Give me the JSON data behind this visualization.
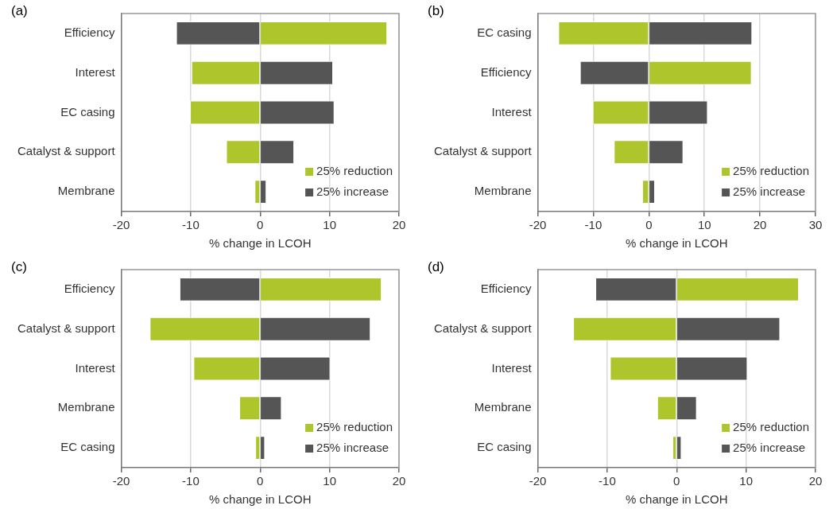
{
  "chart_data": [
    {
      "type": "bar",
      "title": "(a)",
      "orientation": "horizontal",
      "stacked": true,
      "xlabel": "% change in LCOH",
      "categories": [
        "Efficiency",
        "Interest",
        "EC casing",
        "Catalyst & support",
        "Membrane"
      ],
      "series": [
        {
          "name": "25% reduction",
          "color": "#aec62c",
          "values": [
            18.3,
            -9.9,
            -10.1,
            -4.9,
            -0.8
          ]
        },
        {
          "name": "25% increase",
          "color": "#555555",
          "values": [
            -12.1,
            10.5,
            10.7,
            4.9,
            0.9
          ]
        }
      ],
      "xlim": [
        -20,
        20
      ],
      "xticks": [
        -20,
        -10,
        0,
        10,
        20
      ],
      "grid": "x",
      "legend": "bottom right"
    },
    {
      "type": "bar",
      "title": "(b)",
      "orientation": "horizontal",
      "stacked": true,
      "xlabel": "% change in LCOH",
      "categories": [
        "EC casing",
        "Efficiency",
        "Interest",
        "Catalyst & support",
        "Membrane"
      ],
      "series": [
        {
          "name": "25% reduction",
          "color": "#aec62c",
          "values": [
            -16.3,
            18.5,
            -10.1,
            -6.3,
            -1.2
          ]
        },
        {
          "name": "25% increase",
          "color": "#555555",
          "values": [
            18.6,
            -12.4,
            10.6,
            6.2,
            1.1
          ]
        }
      ],
      "xlim": [
        -20,
        30
      ],
      "xticks": [
        -20,
        -10,
        0,
        10,
        20,
        30
      ],
      "grid": "x",
      "legend": "bottom right"
    },
    {
      "type": "bar",
      "title": "(c)",
      "orientation": "horizontal",
      "stacked": true,
      "xlabel": "% change in LCOH",
      "categories": [
        "Efficiency",
        "Catalyst & support",
        "Interest",
        "Membrane",
        "EC casing"
      ],
      "series": [
        {
          "name": "25% reduction",
          "color": "#aec62c",
          "values": [
            17.5,
            -15.9,
            -9.6,
            -3.0,
            -0.7
          ]
        },
        {
          "name": "25% increase",
          "color": "#555555",
          "values": [
            -11.6,
            15.9,
            10.1,
            3.1,
            0.7
          ]
        }
      ],
      "xlim": [
        -20,
        20
      ],
      "xticks": [
        -20,
        -10,
        0,
        10,
        20
      ],
      "grid": "x",
      "legend": "bottom right"
    },
    {
      "type": "bar",
      "title": "(d)",
      "orientation": "horizontal",
      "stacked": true,
      "xlabel": "% change in LCOH",
      "categories": [
        "Efficiency",
        "Catalyst & support",
        "Interest",
        "Membrane",
        "EC casing"
      ],
      "series": [
        {
          "name": "25% reduction",
          "color": "#aec62c",
          "values": [
            17.6,
            -14.9,
            -9.6,
            -2.8,
            -0.6
          ]
        },
        {
          "name": "25% increase",
          "color": "#555555",
          "values": [
            -11.7,
            14.9,
            10.2,
            2.9,
            0.7
          ]
        }
      ],
      "xlim": [
        -20,
        20
      ],
      "xticks": [
        -20,
        -10,
        0,
        10,
        20
      ],
      "grid": "x",
      "legend": "bottom right"
    }
  ]
}
